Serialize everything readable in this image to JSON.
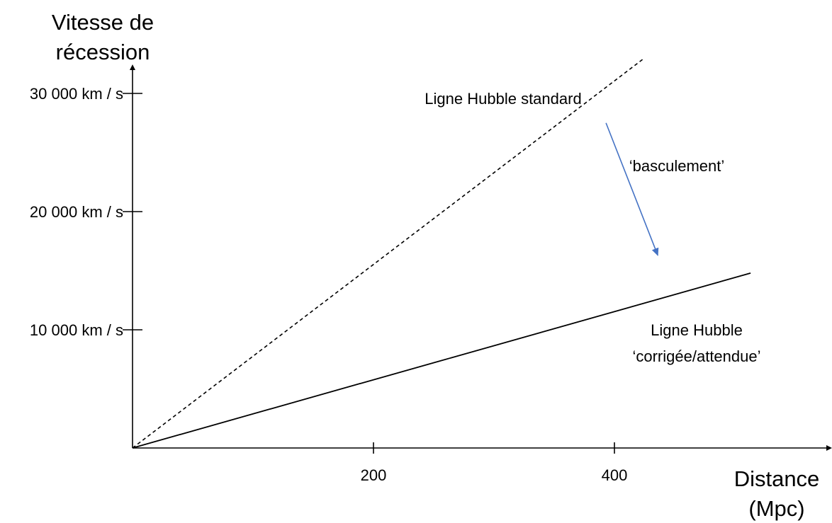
{
  "chart_data": {
    "type": "line",
    "ylabel_lines": [
      "Vitesse de",
      "récession"
    ],
    "xlabel_lines": [
      "Distance",
      "(Mpc)"
    ],
    "x_ticks": [
      {
        "value": 200,
        "label": "200"
      },
      {
        "value": 400,
        "label": "400"
      }
    ],
    "y_ticks": [
      {
        "value": 10000,
        "label": "10 000 km / s"
      },
      {
        "value": 20000,
        "label": "20 000 km / s"
      },
      {
        "value": 30000,
        "label": "30 000 km / s"
      }
    ],
    "xlim": [
      0,
      575
    ],
    "ylim": [
      0,
      33000
    ],
    "grid": false,
    "series": [
      {
        "id": "standard",
        "label_lines": [
          "Ligne Hubble standard"
        ],
        "style": "dashed",
        "color": "#000000",
        "points": [
          [
            0,
            0
          ],
          [
            425,
            33000
          ]
        ]
      },
      {
        "id": "corrigee",
        "label_lines": [
          "Ligne Hubble",
          "‘corrigée/attendue’"
        ],
        "style": "solid",
        "color": "#000000",
        "points": [
          [
            0,
            0
          ],
          [
            513,
            14800
          ]
        ]
      }
    ],
    "annotation": {
      "text": "‘basculement’",
      "color": "#4472C4",
      "from": [
        393,
        27500
      ],
      "to": [
        436,
        16300
      ]
    }
  }
}
